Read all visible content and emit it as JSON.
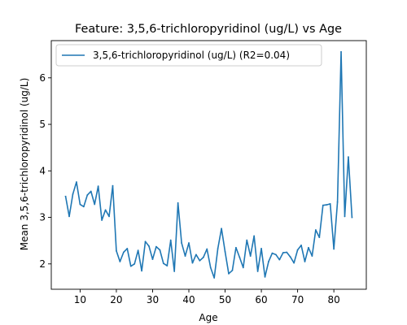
{
  "chart_data": {
    "type": "line",
    "title": "Feature: 3,5,6-trichloropyridinol (ug/L) vs Age",
    "xlabel": "Age",
    "ylabel": "Mean 3,5,6-trichloropyridinol (ug/L)",
    "xlim": [
      2.05,
      88.95
    ],
    "ylim": [
      1.455,
      6.8
    ],
    "xticks": [
      10,
      20,
      30,
      40,
      50,
      60,
      70,
      80
    ],
    "yticks": [
      2,
      3,
      4,
      5,
      6
    ],
    "grid": false,
    "legend_position": "top-left",
    "series": [
      {
        "name": "3,5,6-trichloropyridinol (ug/L) (R2=0.04)",
        "color": "#1f77b4",
        "x": [
          6,
          7,
          8,
          9,
          10,
          11,
          12,
          13,
          14,
          15,
          16,
          17,
          18,
          19,
          20,
          21,
          22,
          23,
          24,
          25,
          26,
          27,
          28,
          29,
          30,
          31,
          32,
          33,
          34,
          35,
          36,
          37,
          38,
          39,
          40,
          41,
          42,
          43,
          44,
          45,
          46,
          47,
          48,
          49,
          50,
          51,
          52,
          53,
          54,
          55,
          56,
          57,
          58,
          59,
          60,
          61,
          62,
          63,
          64,
          65,
          66,
          67,
          68,
          69,
          70,
          71,
          72,
          73,
          74,
          75,
          76,
          77,
          78,
          79,
          80,
          81,
          82,
          83,
          84,
          85
        ],
        "values": [
          3.45,
          3.02,
          3.5,
          3.76,
          3.28,
          3.23,
          3.48,
          3.56,
          3.28,
          3.67,
          2.94,
          3.16,
          3.02,
          3.68,
          2.28,
          2.05,
          2.25,
          2.33,
          1.95,
          2.0,
          2.29,
          1.85,
          2.48,
          2.38,
          2.1,
          2.37,
          2.3,
          2.01,
          1.96,
          2.51,
          1.84,
          3.31,
          2.45,
          2.17,
          2.45,
          2.02,
          2.2,
          2.07,
          2.14,
          2.32,
          1.92,
          1.7,
          2.33,
          2.76,
          2.26,
          1.79,
          1.86,
          2.35,
          2.14,
          1.92,
          2.51,
          2.17,
          2.6,
          1.84,
          2.33,
          1.72,
          2.05,
          2.23,
          2.2,
          2.09,
          2.24,
          2.25,
          2.15,
          2.02,
          2.3,
          2.4,
          2.05,
          2.35,
          2.17,
          2.73,
          2.57,
          3.26,
          3.27,
          3.29,
          2.32,
          3.33,
          6.56,
          3.02,
          4.3,
          3.0
        ]
      }
    ]
  }
}
